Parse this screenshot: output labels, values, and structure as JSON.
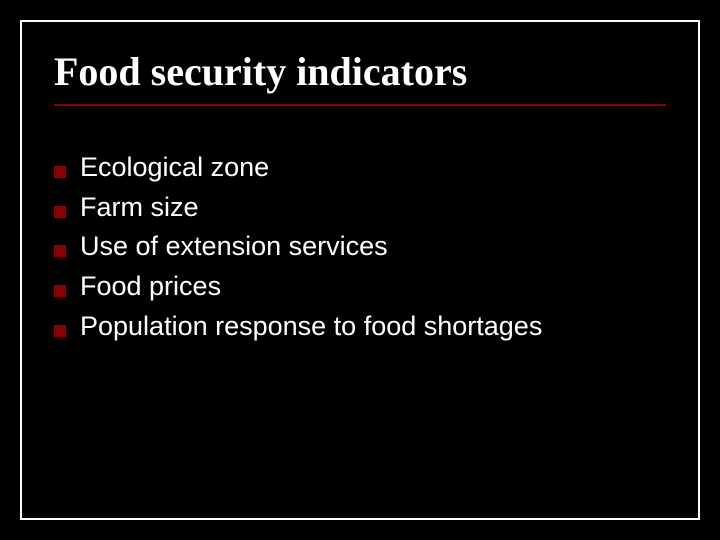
{
  "slide": {
    "title": "Food security indicators",
    "title_fontsize": 40,
    "title_color": "#ffffff",
    "title_underline_color": "#8b0000",
    "background_color": "#000000",
    "border_color": "#ffffff",
    "bullets": {
      "icon_color": "#8b0000",
      "text_color": "#ffffff",
      "fontsize": 27,
      "line_height": 1.32,
      "items": [
        "Ecological zone",
        "Farm size",
        "Use of extension services",
        "Food prices",
        "Population response to food shortages"
      ]
    }
  }
}
